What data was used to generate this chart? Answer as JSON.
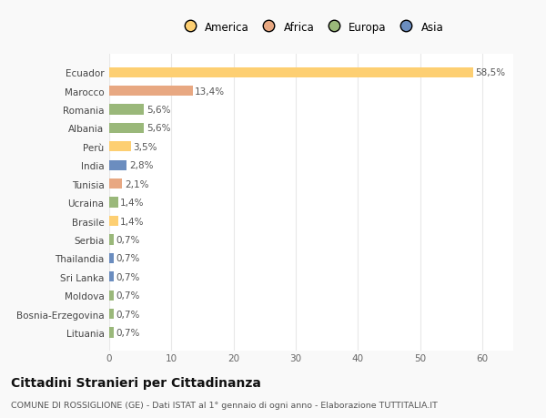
{
  "countries": [
    "Ecuador",
    "Marocco",
    "Romania",
    "Albania",
    "Perù",
    "India",
    "Tunisia",
    "Ucraina",
    "Brasile",
    "Serbia",
    "Thailandia",
    "Sri Lanka",
    "Moldova",
    "Bosnia-Erzegovina",
    "Lituania"
  ],
  "values": [
    58.5,
    13.4,
    5.6,
    5.6,
    3.5,
    2.8,
    2.1,
    1.4,
    1.4,
    0.7,
    0.7,
    0.7,
    0.7,
    0.7,
    0.7
  ],
  "labels": [
    "58,5%",
    "13,4%",
    "5,6%",
    "5,6%",
    "3,5%",
    "2,8%",
    "2,1%",
    "1,4%",
    "1,4%",
    "0,7%",
    "0,7%",
    "0,7%",
    "0,7%",
    "0,7%",
    "0,7%"
  ],
  "colors": [
    "#FDCF72",
    "#E8A882",
    "#9AB87A",
    "#9AB87A",
    "#FDCF72",
    "#6B8DBF",
    "#E8A882",
    "#9AB87A",
    "#FDCF72",
    "#9AB87A",
    "#6B8DBF",
    "#6B8DBF",
    "#9AB87A",
    "#9AB87A",
    "#9AB87A"
  ],
  "legend": {
    "labels": [
      "America",
      "Africa",
      "Europa",
      "Asia"
    ],
    "colors": [
      "#FDCF72",
      "#E8A882",
      "#9AB87A",
      "#6B8DBF"
    ]
  },
  "title": "Cittadini Stranieri per Cittadinanza",
  "subtitle": "COMUNE DI ROSSIGLIONE (GE) - Dati ISTAT al 1° gennaio di ogni anno - Elaborazione TUTTITALIA.IT",
  "xlim": [
    0,
    65
  ],
  "xticks": [
    0,
    10,
    20,
    30,
    40,
    50,
    60
  ],
  "background_color": "#f9f9f9",
  "plot_bg_color": "#ffffff",
  "grid_color": "#e8e8e8"
}
